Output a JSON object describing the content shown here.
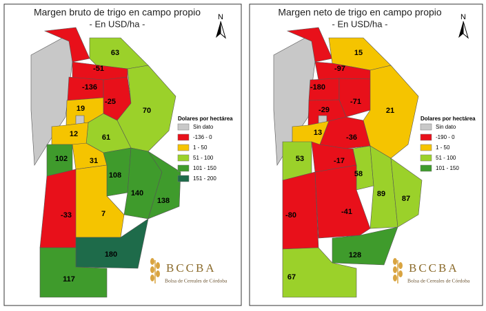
{
  "maps": [
    {
      "title": "Margen bruto de trigo en campo propio",
      "subtitle": "- En USD/ha -",
      "north": "N",
      "legend": {
        "title": "Dolares por hectárea",
        "items": [
          {
            "label": "Sin dato",
            "color": "#c8c8c8"
          },
          {
            "label": "-136 - 0",
            "color": "#e8101a"
          },
          {
            "label": "1 - 50",
            "color": "#f5c400"
          },
          {
            "label": "51 - 100",
            "color": "#9bd12a"
          },
          {
            "label": "101 - 150",
            "color": "#3f9b2c"
          },
          {
            "label": "151 - 200",
            "color": "#1e6b4a"
          }
        ]
      },
      "regions": [
        {
          "value": null,
          "color": "#c8c8c8"
        },
        {
          "value": null,
          "color": "#e8101a"
        },
        {
          "value": 63,
          "color": "#9bd12a"
        },
        {
          "value": -51,
          "color": "#e8101a"
        },
        {
          "value": -136,
          "color": "#e8101a"
        },
        {
          "value": -25,
          "color": "#e8101a"
        },
        {
          "value": 70,
          "color": "#9bd12a"
        },
        {
          "value": 19,
          "color": "#f5c400"
        },
        {
          "value": null,
          "color": "#c8c8c8"
        },
        {
          "value": 61,
          "color": "#9bd12a"
        },
        {
          "value": 12,
          "color": "#f5c400"
        },
        {
          "value": 102,
          "color": "#3f9b2c"
        },
        {
          "value": 31,
          "color": "#f5c400"
        },
        {
          "value": 108,
          "color": "#3f9b2c"
        },
        {
          "value": 140,
          "color": "#3f9b2c"
        },
        {
          "value": 138,
          "color": "#3f9b2c"
        },
        {
          "value": -33,
          "color": "#e8101a"
        },
        {
          "value": 7,
          "color": "#f5c400"
        },
        {
          "value": 180,
          "color": "#1e6b4a"
        },
        {
          "value": 117,
          "color": "#3f9b2c"
        }
      ],
      "logo": {
        "name": "BCCBA",
        "subtitle": "Bolsa de Cereales de Córdoba"
      }
    },
    {
      "title": "Margen neto de trigo en campo propio",
      "subtitle": "- En USD/ha -",
      "north": "N",
      "legend": {
        "title": "Dolares por hectárea",
        "items": [
          {
            "label": "Sin dato",
            "color": "#c8c8c8"
          },
          {
            "label": "-190 - 0",
            "color": "#e8101a"
          },
          {
            "label": "1 - 50",
            "color": "#f5c400"
          },
          {
            "label": "51 - 100",
            "color": "#9bd12a"
          },
          {
            "label": "101 - 150",
            "color": "#3f9b2c"
          }
        ]
      },
      "regions": [
        {
          "value": null,
          "color": "#c8c8c8"
        },
        {
          "value": null,
          "color": "#e8101a"
        },
        {
          "value": 15,
          "color": "#f5c400"
        },
        {
          "value": -97,
          "color": "#e8101a"
        },
        {
          "value": -180,
          "color": "#e8101a"
        },
        {
          "value": -71,
          "color": "#e8101a"
        },
        {
          "value": 21,
          "color": "#f5c400"
        },
        {
          "value": -29,
          "color": "#e8101a"
        },
        {
          "value": null,
          "color": "#c8c8c8"
        },
        {
          "value": -36,
          "color": "#e8101a"
        },
        {
          "value": 13,
          "color": "#f5c400"
        },
        {
          "value": 53,
          "color": "#9bd12a"
        },
        {
          "value": -17,
          "color": "#e8101a"
        },
        {
          "value": 58,
          "color": "#9bd12a"
        },
        {
          "value": 89,
          "color": "#9bd12a"
        },
        {
          "value": 87,
          "color": "#9bd12a"
        },
        {
          "value": -80,
          "color": "#e8101a"
        },
        {
          "value": -41,
          "color": "#e8101a"
        },
        {
          "value": 128,
          "color": "#3f9b2c"
        },
        {
          "value": 67,
          "color": "#9bd12a"
        }
      ],
      "logo": {
        "name": "BCCBA",
        "subtitle": "Bolsa de Cereales de Córdoba"
      }
    }
  ]
}
